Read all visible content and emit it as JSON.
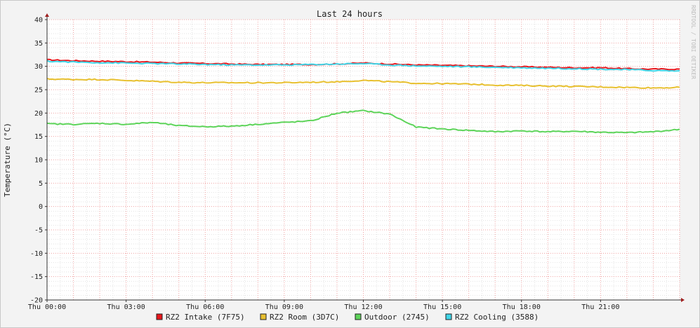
{
  "chart_data": {
    "type": "line",
    "title": "Last 24 hours",
    "ylabel": "Temperature (°C)",
    "watermark": "RRDTOOL / TOBI OETIKER",
    "ylim": [
      -20,
      40
    ],
    "yticks": [
      40,
      35,
      30,
      25,
      20,
      15,
      10,
      5,
      0,
      -5,
      -10,
      -15,
      -20
    ],
    "x_range_hours": [
      0,
      24
    ],
    "xticks": [
      {
        "h": 0,
        "label": "Thu 00:00"
      },
      {
        "h": 3,
        "label": "Thu 03:00"
      },
      {
        "h": 6,
        "label": "Thu 06:00"
      },
      {
        "h": 9,
        "label": "Thu 09:00"
      },
      {
        "h": 12,
        "label": "Thu 12:00"
      },
      {
        "h": 15,
        "label": "Thu 15:00"
      },
      {
        "h": 18,
        "label": "Thu 18:00"
      },
      {
        "h": 21,
        "label": "Thu 21:00"
      }
    ],
    "x_hours": [
      0,
      1,
      2,
      3,
      4,
      5,
      6,
      7,
      8,
      9,
      10,
      11,
      12,
      13,
      14,
      15,
      16,
      17,
      18,
      19,
      20,
      21,
      22,
      23,
      24
    ],
    "series": [
      {
        "name": "RZ2 Intake (7F75)",
        "color": "#e8161c",
        "values": [
          31.4,
          31.2,
          31.1,
          31.0,
          30.9,
          30.7,
          30.6,
          30.5,
          30.4,
          30.4,
          30.4,
          30.5,
          30.7,
          30.5,
          30.3,
          30.2,
          30.1,
          30.0,
          29.9,
          29.8,
          29.7,
          29.7,
          29.5,
          29.4,
          29.4
        ]
      },
      {
        "name": "RZ2 Room (3D7C)",
        "color": "#e8c030",
        "values": [
          27.3,
          27.2,
          27.2,
          27.0,
          26.8,
          26.6,
          26.5,
          26.5,
          26.5,
          26.5,
          26.6,
          26.7,
          27.0,
          26.7,
          26.4,
          26.3,
          26.2,
          26.0,
          25.9,
          25.8,
          25.7,
          25.6,
          25.5,
          25.4,
          25.5
        ]
      },
      {
        "name": "Outdoor (2745)",
        "color": "#5ed45a",
        "values": [
          17.7,
          17.6,
          17.8,
          17.6,
          18.0,
          17.3,
          17.1,
          17.2,
          17.6,
          18.0,
          18.3,
          20.0,
          20.5,
          19.8,
          17.0,
          16.6,
          16.3,
          16.0,
          16.2,
          16.0,
          16.1,
          15.9,
          15.8,
          16.0,
          16.5
        ]
      },
      {
        "name": "RZ2 Cooling (3588)",
        "color": "#40d6e8",
        "values": [
          31.1,
          30.9,
          30.8,
          30.7,
          30.6,
          30.5,
          30.4,
          30.3,
          30.3,
          30.3,
          30.4,
          30.5,
          30.6,
          30.3,
          30.1,
          30.0,
          29.9,
          29.8,
          29.7,
          29.6,
          29.5,
          29.4,
          29.3,
          29.1,
          29.0
        ]
      }
    ],
    "grid": true,
    "legend_position": "bottom"
  }
}
